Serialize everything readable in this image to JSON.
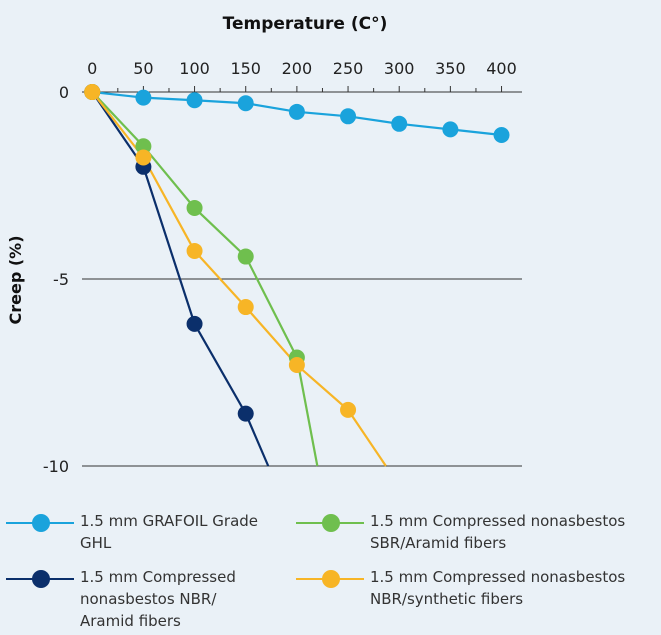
{
  "chart_data": {
    "type": "line",
    "title": "Temperature (C°)",
    "xlabel": "Temperature (C°)",
    "ylabel": "Creep (%)",
    "x_ticks": [
      "0",
      "50",
      "100",
      "150",
      "200",
      "250",
      "300",
      "350",
      "400"
    ],
    "y_ticks": [
      "0",
      "-5",
      "-10"
    ],
    "xlim": [
      -10,
      420
    ],
    "ylim": [
      -10,
      0
    ],
    "x_axis_position": "top",
    "legend_position": "bottom",
    "grid": "horizontal at -5",
    "series": [
      {
        "name": "1.5 mm GRAFOIL Grade GHL",
        "color": "#1aa3dc",
        "x": [
          0,
          50,
          100,
          150,
          200,
          250,
          300,
          350,
          400
        ],
        "y": [
          0,
          -0.15,
          -0.22,
          -0.3,
          -0.53,
          -0.65,
          -0.85,
          -1.0,
          -1.15
        ]
      },
      {
        "name": "1.5 mm Compressed nonasbestos SBR/Aramid fibers",
        "color": "#6fbf4e",
        "x": [
          0,
          50,
          100,
          150,
          200,
          220
        ],
        "y": [
          0,
          -1.45,
          -3.1,
          -4.4,
          -7.1,
          -10
        ]
      },
      {
        "name": "1.5 mm Compressed nonasbestos NBR/ Aramid fibers",
        "color": "#0b2f6b",
        "x": [
          0,
          50,
          100,
          150,
          172
        ],
        "y": [
          0,
          -2.0,
          -6.2,
          -8.6,
          -10
        ]
      },
      {
        "name": "1.5 mm Compressed nonasbestos NBR/synthetic fibers",
        "color": "#f7b526",
        "x": [
          0,
          50,
          100,
          150,
          200,
          250,
          287
        ],
        "y": [
          0,
          -1.75,
          -4.25,
          -5.75,
          -7.3,
          -8.5,
          -10
        ]
      }
    ]
  },
  "legend": {
    "items": [
      {
        "label_lines": [
          "1.5 mm GRAFOIL Grade",
          "GHL"
        ],
        "color": "#1aa3dc"
      },
      {
        "label_lines": [
          "1.5 mm Compressed nonasbestos",
          "SBR/Aramid fibers"
        ],
        "color": "#6fbf4e"
      },
      {
        "label_lines": [
          "1.5 mm Compressed",
          "nonasbestos NBR/",
          "Aramid fibers"
        ],
        "color": "#0b2f6b"
      },
      {
        "label_lines": [
          "1.5 mm Compressed nonasbestos",
          "NBR/synthetic fibers"
        ],
        "color": "#f7b526"
      }
    ]
  }
}
